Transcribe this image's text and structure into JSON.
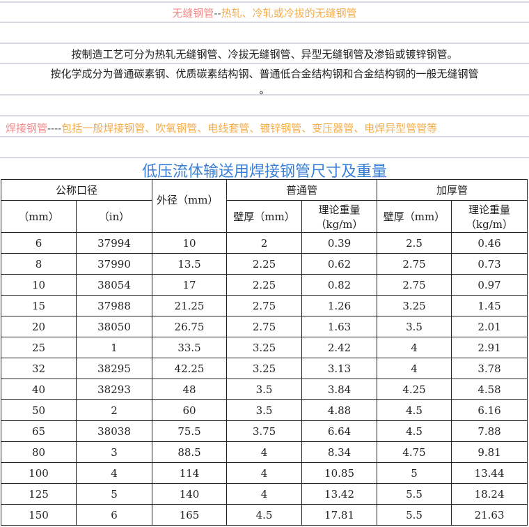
{
  "seamless": {
    "label": "无缝钢管",
    "sep": "--",
    "desc": "热轧、冷轧或冷拔的无缝钢管"
  },
  "intro": {
    "line1": "按制造工艺可分为热轧无缝钢管、冷拔无缝钢管、异型无缝钢管及渗铅或镀锌钢管。",
    "line2": "按化学成分为普通碳素钢、优质碳素结构钢、普通低合金结构钢和合金结构钢的一般无缝钢管",
    "line3": "。"
  },
  "welded": {
    "label": "焊接钢管",
    "sep": "----",
    "desc": "包括一般焊接钢管、吹氧钢管、电线套管、镀锌钢管、变压器管、电焊异型管管等"
  },
  "table": {
    "title": "低压流体输送用焊接钢管尺寸及重量",
    "headers": {
      "nominal": "公称口径",
      "outer": "外径（mm）",
      "normal": "普通管",
      "thick": "加厚管",
      "mm": "（mm）",
      "in": "（in）",
      "wall1": "壁厚（mm）",
      "weight1a": "理论重量",
      "weight1b": "（kg/m）",
      "wall2": "壁厚（mm）",
      "weight2a": "理论重量",
      "weight2b": "（kg/m）"
    },
    "rows": [
      [
        "6",
        "37994",
        "10",
        "2",
        "0.39",
        "2.5",
        "0.46"
      ],
      [
        "8",
        "37990",
        "13.5",
        "2.25",
        "0.62",
        "2.75",
        "0.73"
      ],
      [
        "10",
        "38054",
        "17",
        "2.25",
        "0.82",
        "2.75",
        "0.97"
      ],
      [
        "15",
        "37988",
        "21.25",
        "2.75",
        "1.26",
        "3.25",
        "1.45"
      ],
      [
        "20",
        "38050",
        "26.75",
        "2.75",
        "1.63",
        "3.5",
        "2.01"
      ],
      [
        "25",
        "1",
        "33.5",
        "3.25",
        "2.42",
        "4",
        "2.91"
      ],
      [
        "32",
        "38295",
        "42.25",
        "3.25",
        "3.13",
        "4",
        "3.78"
      ],
      [
        "40",
        "38293",
        "48",
        "3.5",
        "3.84",
        "4.25",
        "4.58"
      ],
      [
        "50",
        "2",
        "60",
        "3.5",
        "4.88",
        "4.5",
        "6.16"
      ],
      [
        "65",
        "38038",
        "75.5",
        "3.75",
        "6.64",
        "4.5",
        "7.88"
      ],
      [
        "80",
        "3",
        "88.5",
        "4",
        "8.34",
        "4.75",
        "9.81"
      ],
      [
        "100",
        "4",
        "114",
        "4",
        "10.85",
        "5",
        "13.44"
      ],
      [
        "125",
        "5",
        "140",
        "4",
        "13.42",
        "5.5",
        "18.24"
      ],
      [
        "150",
        "6",
        "165",
        "4.5",
        "17.81",
        "5.5",
        "21.63"
      ]
    ]
  },
  "colors": {
    "pink": "#f48a8a",
    "orange": "#f5ad4a",
    "title": "#3a7fd6"
  }
}
